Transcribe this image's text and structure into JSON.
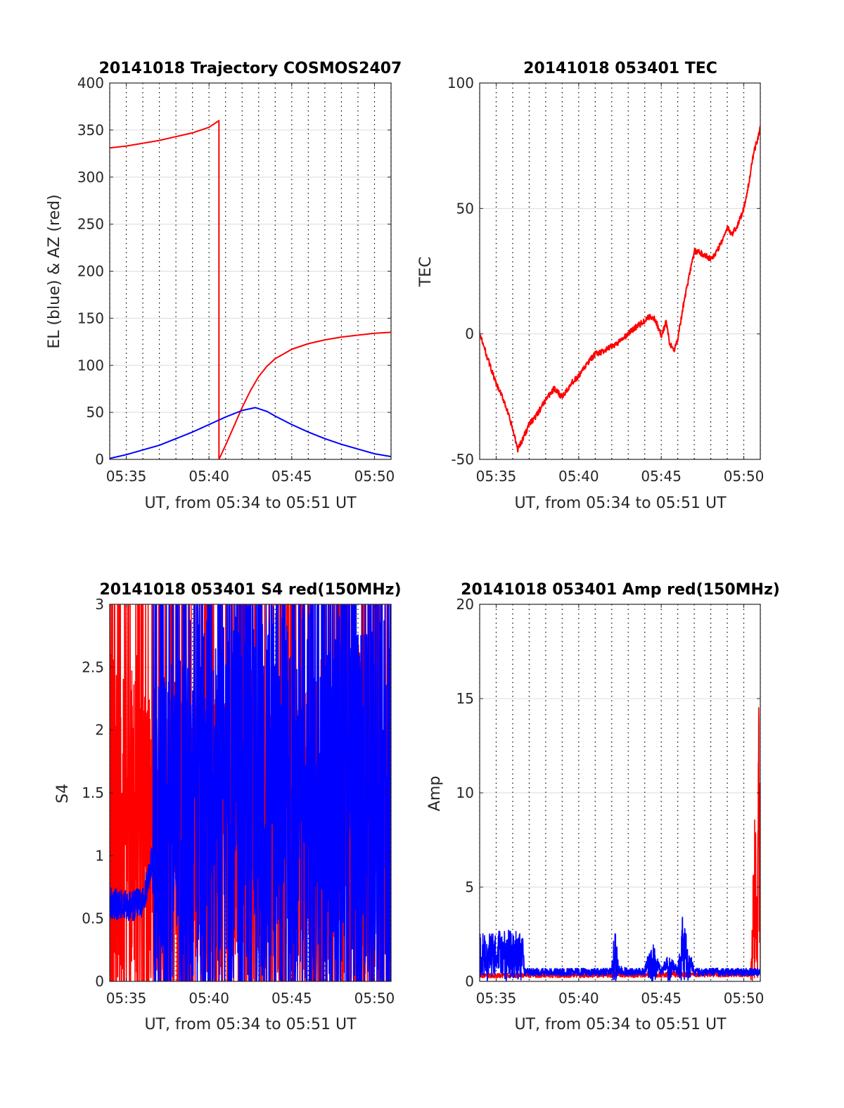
{
  "chart_data": [
    {
      "id": "p1",
      "type": "line",
      "title": "20141018 Trajectory COSMOS2407",
      "xlabel": "UT, from 05:34 to 05:51 UT",
      "ylabel": "EL (blue) & AZ (red)",
      "xlim": [
        34.0,
        51.0
      ],
      "ylim": [
        0,
        400
      ],
      "x_ticks": [
        35,
        40,
        45,
        50
      ],
      "x_tick_labels": [
        "05:35",
        "05:40",
        "05:45",
        "05:50"
      ],
      "y_ticks": [
        0,
        50,
        100,
        150,
        200,
        250,
        300,
        350,
        400
      ],
      "y_tick_labels": [
        "0",
        "50",
        "100",
        "150",
        "200",
        "250",
        "300",
        "350",
        "400"
      ],
      "grid": true,
      "series": [
        {
          "color": "#ff0000",
          "x": [
            34.0,
            35.0,
            36.0,
            37.0,
            38.0,
            39.0,
            40.0,
            40.6,
            40.6,
            41.0,
            41.5,
            42.0,
            42.5,
            43.0,
            43.5,
            44.0,
            45.0,
            46.0,
            47.0,
            48.0,
            49.0,
            50.0,
            51.0
          ],
          "values": [
            331,
            333,
            336,
            339,
            343,
            347,
            353,
            360,
            0,
            15,
            35,
            55,
            73,
            88,
            99,
            107,
            117,
            123,
            127,
            130,
            132,
            134,
            135
          ]
        },
        {
          "color": "#0000ff",
          "x": [
            34.0,
            35.0,
            36.0,
            37.0,
            38.0,
            39.0,
            40.0,
            41.0,
            42.0,
            42.8,
            43.5,
            44.0,
            45.0,
            46.0,
            47.0,
            48.0,
            49.0,
            50.0,
            51.0
          ],
          "values": [
            1,
            5,
            10,
            15,
            22,
            29,
            37,
            45,
            52,
            55,
            51,
            46,
            37,
            29,
            22,
            16,
            11,
            6,
            3
          ]
        }
      ]
    },
    {
      "id": "p2",
      "type": "line",
      "title": "20141018 053401 TEC",
      "xlabel": "UT, from 05:34 to 05:51 UT",
      "ylabel": "TEC",
      "xlim": [
        34.0,
        51.0
      ],
      "ylim": [
        -50,
        100
      ],
      "x_ticks": [
        35,
        40,
        45,
        50
      ],
      "x_tick_labels": [
        "05:35",
        "05:40",
        "05:45",
        "05:50"
      ],
      "y_ticks": [
        -50,
        0,
        50,
        100
      ],
      "y_tick_labels": [
        "-50",
        "0",
        "50",
        "100"
      ],
      "grid": true,
      "series": [
        {
          "color": "#ff0000",
          "x": [
            34.0,
            34.5,
            35.0,
            35.5,
            36.0,
            36.3,
            36.6,
            37.0,
            37.5,
            38.0,
            38.5,
            39.0,
            39.5,
            40.0,
            40.5,
            41.0,
            41.5,
            42.0,
            42.5,
            43.0,
            43.5,
            44.0,
            44.3,
            44.6,
            44.8,
            45.0,
            45.3,
            45.5,
            45.8,
            46.0,
            46.3,
            46.6,
            47.0,
            47.5,
            48.0,
            48.3,
            48.6,
            49.0,
            49.3,
            49.6,
            50.0,
            50.3,
            50.6,
            51.0
          ],
          "values": [
            0,
            -10,
            -20,
            -27,
            -38,
            -46,
            -42,
            -36,
            -32,
            -26,
            -22,
            -25,
            -20,
            -17,
            -12,
            -8,
            -7,
            -5,
            -3,
            0,
            3,
            5,
            7,
            6,
            3,
            -1,
            5,
            -4,
            -6,
            -2,
            10,
            20,
            33,
            32,
            30,
            32,
            36,
            42,
            40,
            43,
            50,
            60,
            72,
            82
          ]
        }
      ]
    },
    {
      "id": "p3",
      "type": "line",
      "title": "20141018 053401 S4 red(150MHz)",
      "xlabel": "UT, from 05:34 to 05:51 UT",
      "ylabel": "S4",
      "xlim": [
        34.0,
        51.0
      ],
      "ylim": [
        0,
        3
      ],
      "x_ticks": [
        35,
        40,
        45,
        50
      ],
      "x_tick_labels": [
        "05:35",
        "05:40",
        "05:45",
        "05:50"
      ],
      "y_ticks": [
        0,
        0.5,
        1,
        1.5,
        2,
        2.5,
        3
      ],
      "y_tick_labels": [
        "0",
        "0.5",
        "1",
        "1.5",
        "2",
        "2.5",
        "3"
      ],
      "grid": true,
      "series": [
        {
          "color": "#ff0000",
          "style": "noise",
          "x": [
            34.0,
            36.0,
            36.6,
            40.0,
            44.0,
            47.0,
            49.0,
            50.0,
            51.0
          ],
          "values": [
            1.5,
            1.5,
            1.2,
            1.3,
            1.4,
            1.5,
            1.6,
            1.3,
            1.2
          ]
        },
        {
          "color": "#0000ff",
          "style": "noise",
          "x": [
            34.0,
            35.0,
            36.0,
            36.6,
            38.0,
            40.0,
            42.0,
            44.0,
            46.0,
            48.0,
            50.0,
            51.0
          ],
          "values": [
            0.62,
            0.6,
            0.62,
            1.0,
            1.8,
            2.2,
            2.4,
            2.0,
            2.2,
            2.4,
            2.2,
            1.8
          ]
        }
      ]
    },
    {
      "id": "p4",
      "type": "line",
      "title": "20141018 053401 Amp red(150MHz)",
      "xlabel": "UT, from 05:34 to 05:51 UT",
      "ylabel": "Amp",
      "xlim": [
        34.0,
        51.0
      ],
      "ylim": [
        0,
        20
      ],
      "x_ticks": [
        35,
        40,
        45,
        50
      ],
      "x_tick_labels": [
        "05:35",
        "05:40",
        "05:45",
        "05:50"
      ],
      "y_ticks": [
        0,
        5,
        10,
        15,
        20
      ],
      "y_tick_labels": [
        "0",
        "5",
        "10",
        "15",
        "20"
      ],
      "grid": true,
      "series": [
        {
          "color": "#ff0000",
          "style": "noise",
          "x": [
            34.0,
            50.4,
            50.5,
            50.6,
            50.7,
            50.8,
            50.9,
            51.0
          ],
          "values": [
            0.3,
            0.4,
            2.5,
            7.0,
            7.8,
            5.0,
            15.0,
            4.0
          ]
        },
        {
          "color": "#0000ff",
          "style": "noise",
          "x": [
            34.0,
            35.0,
            36.0,
            36.6,
            36.7,
            42.0,
            42.2,
            42.4,
            43.0,
            44.0,
            44.5,
            44.8,
            45.0,
            45.5,
            46.0,
            46.3,
            46.6,
            47.0,
            50.0,
            50.9
          ],
          "values": [
            2.2,
            2.3,
            2.4,
            2.2,
            0.5,
            0.5,
            3.0,
            0.6,
            0.5,
            0.5,
            2.0,
            0.8,
            0.5,
            1.2,
            0.5,
            3.5,
            1.5,
            0.5,
            0.5,
            0.5
          ]
        }
      ]
    }
  ]
}
